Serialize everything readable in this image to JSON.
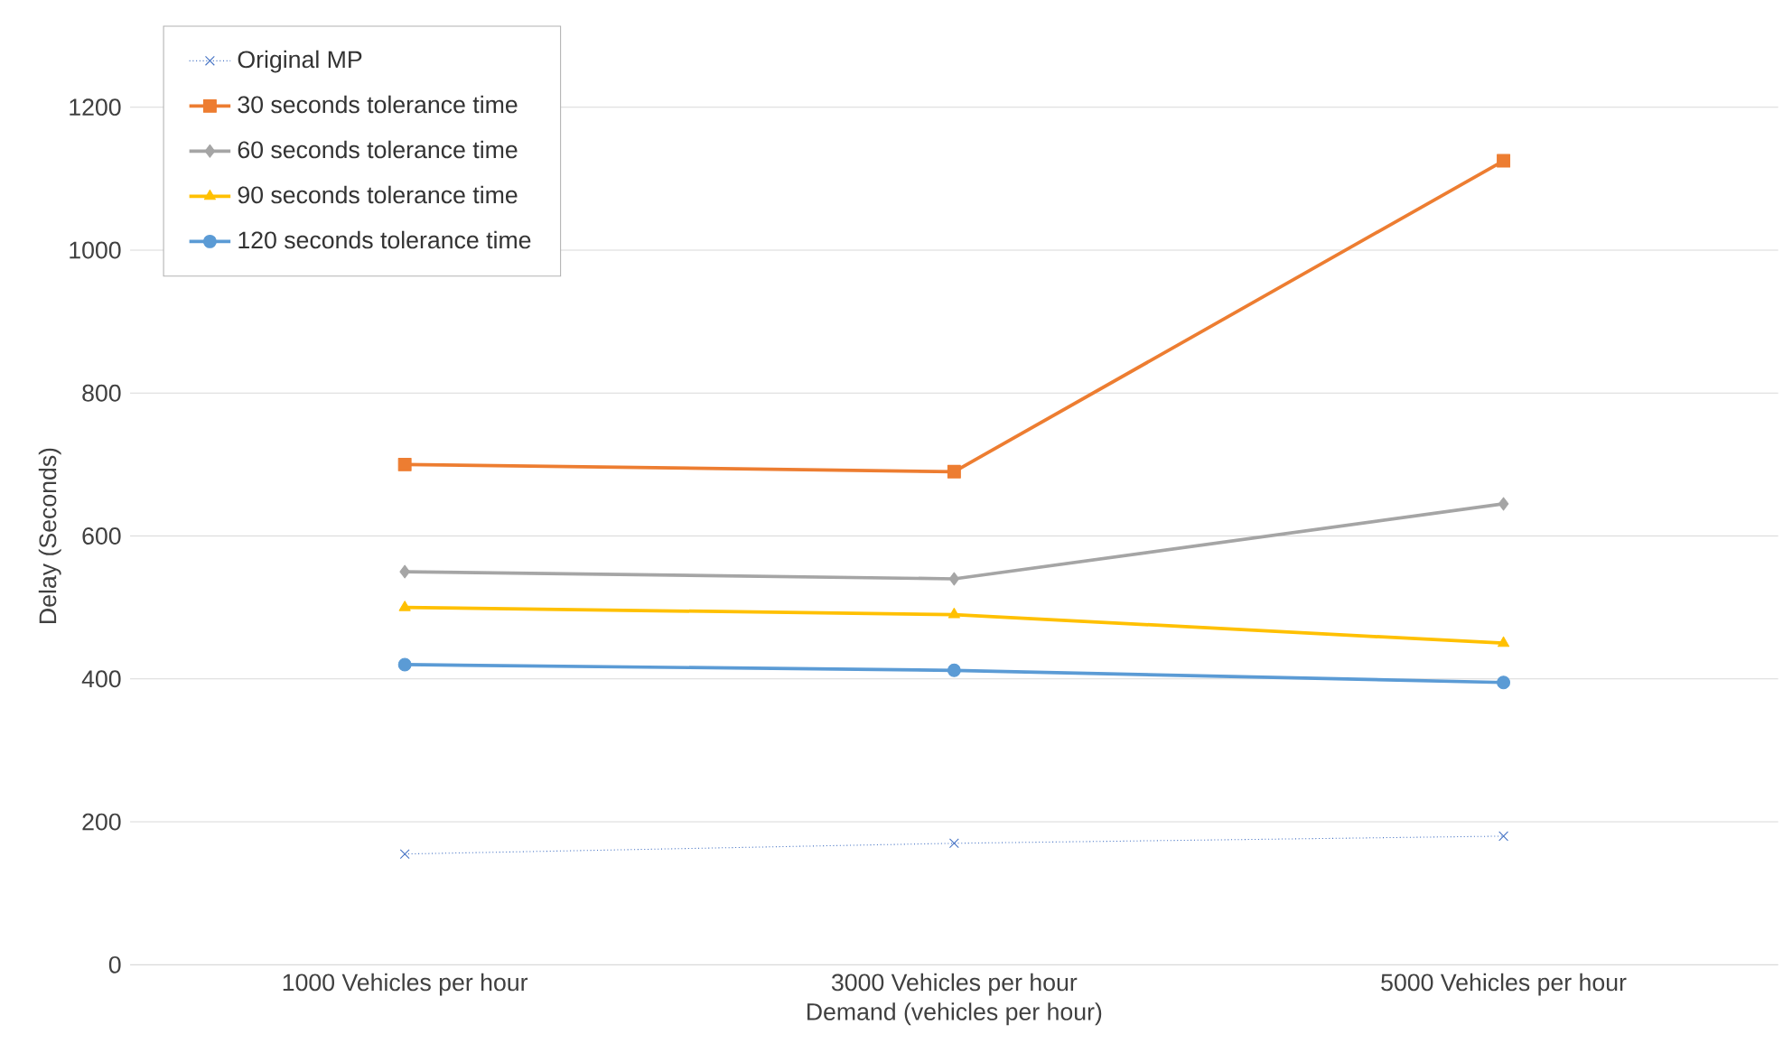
{
  "chart_data": {
    "type": "line",
    "xlabel": "Demand (vehicles per hour)",
    "ylabel": "Delay (Seconds)",
    "categories": [
      "1000 Vehicles per hour",
      "3000 Vehicles per hour",
      "5000 Vehicles per hour"
    ],
    "ylim": [
      0,
      1200
    ],
    "yticks": [
      0,
      200,
      400,
      600,
      800,
      1000,
      1200
    ],
    "grid": "y",
    "legend": "top left",
    "series": [
      {
        "name": "Original MP",
        "color": "#4472c4",
        "values": [
          155,
          170,
          180
        ],
        "marker": "cross",
        "line_style": "dotted"
      },
      {
        "name": "30 seconds tolerance time",
        "color": "#ed7d31",
        "values": [
          700,
          690,
          1125
        ],
        "marker": "square",
        "line_style": "solid"
      },
      {
        "name": "60 seconds tolerance time",
        "color": "#a5a5a5",
        "values": [
          550,
          540,
          645
        ],
        "marker": "diamond",
        "line_style": "solid"
      },
      {
        "name": "90 seconds tolerance time",
        "color": "#ffc000",
        "values": [
          500,
          490,
          450
        ],
        "marker": "triangle",
        "line_style": "solid"
      },
      {
        "name": "120 seconds tolerance time",
        "color": "#5b9bd5",
        "values": [
          420,
          412,
          395
        ],
        "marker": "circle",
        "line_style": "solid"
      }
    ]
  }
}
